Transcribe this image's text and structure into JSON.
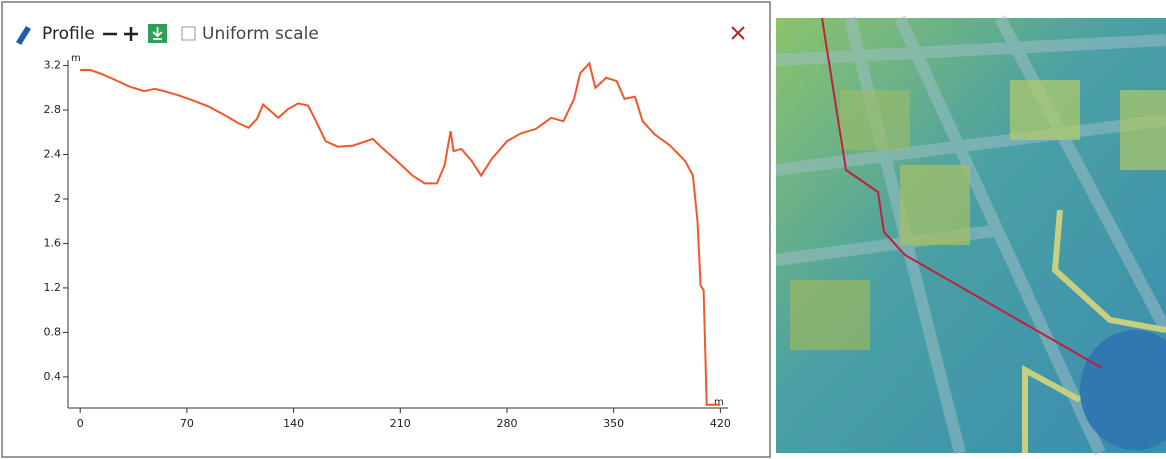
{
  "toolbar": {
    "title": "Profile",
    "checkbox_label": "Uniform scale"
  },
  "chart_data": {
    "type": "line",
    "y_unit": "m",
    "x_unit": "m",
    "x": [
      0,
      6.5,
      13,
      23,
      32.5,
      42,
      49,
      55,
      65,
      75,
      84.5,
      94,
      104,
      110.5,
      116,
      120,
      125,
      130,
      136.5,
      143,
      149.5,
      154.7,
      161,
      169,
      179,
      192,
      198,
      208,
      218,
      226,
      234,
      239,
      243,
      245,
      250,
      257,
      263,
      270,
      280,
      289,
      299,
      309,
      317,
      324,
      328,
      334,
      338,
      345,
      352,
      357,
      364,
      369,
      377,
      387,
      397,
      402,
      405,
      407,
      409,
      411,
      420
    ],
    "series": [
      {
        "name": "Profile",
        "color": "#f0582a",
        "values": [
          3.16,
          3.16,
          3.13,
          3.07,
          3.01,
          2.97,
          2.99,
          2.97,
          2.93,
          2.88,
          2.83,
          2.76,
          2.68,
          2.64,
          2.72,
          2.85,
          2.79,
          2.73,
          2.81,
          2.86,
          2.84,
          2.7,
          2.52,
          2.47,
          2.48,
          2.54,
          2.46,
          2.34,
          2.21,
          2.14,
          2.14,
          2.3,
          2.61,
          2.43,
          2.45,
          2.34,
          2.21,
          2.36,
          2.52,
          2.59,
          2.63,
          2.73,
          2.7,
          2.9,
          3.13,
          3.22,
          3.0,
          3.09,
          3.06,
          2.9,
          2.92,
          2.7,
          2.58,
          2.48,
          2.34,
          2.21,
          1.8,
          1.22,
          1.18,
          0.15,
          0.15
        ]
      }
    ],
    "xlim": [
      -8,
      425
    ],
    "ylim": [
      0.12,
      3.25
    ],
    "xticks": [
      0,
      70,
      140,
      210,
      280,
      350,
      420
    ],
    "yticks": [
      0.4,
      0.8,
      1.2,
      1.6,
      2,
      2.4,
      2.8,
      3.2
    ]
  }
}
